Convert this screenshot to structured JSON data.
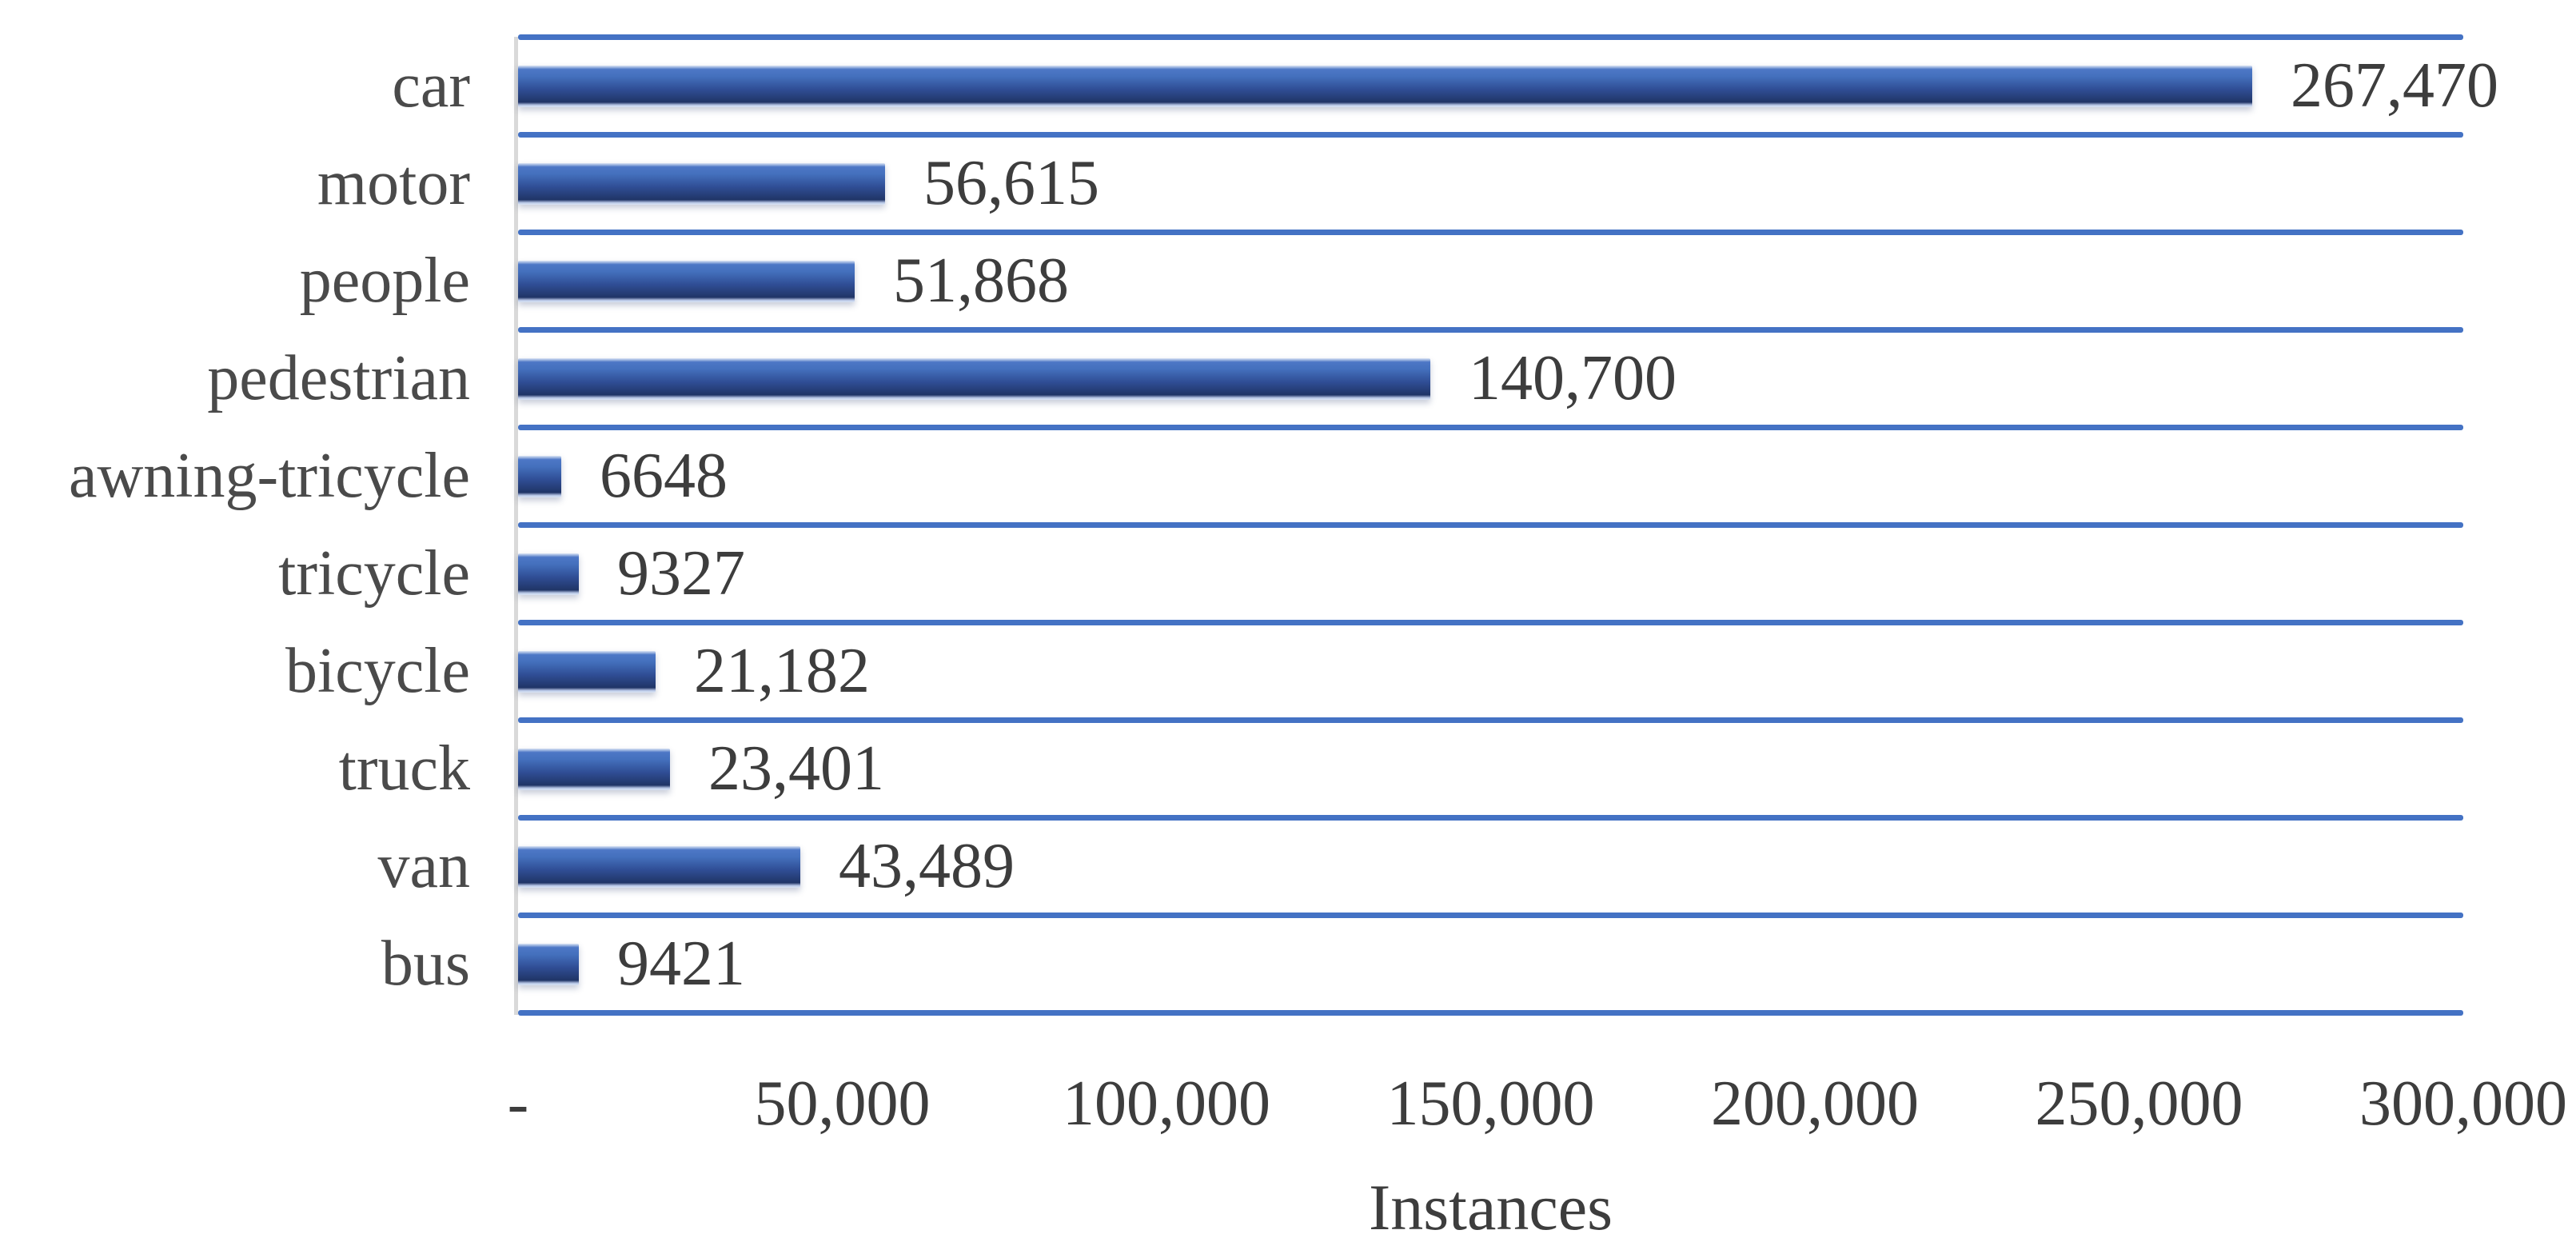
{
  "chart_data": {
    "type": "bar",
    "orientation": "horizontal",
    "title": "",
    "xlabel": "Instances",
    "ylabel": "",
    "xlim": [
      0,
      300000
    ],
    "grid": true,
    "legend": false,
    "categories": [
      "car",
      "motor",
      "people",
      "pedestrian",
      "awning-tricycle",
      "tricycle",
      "bicycle",
      "truck",
      "van",
      "bus"
    ],
    "values": [
      267470,
      56615,
      51868,
      140700,
      6648,
      9327,
      21182,
      23401,
      43489,
      9421
    ],
    "value_labels": [
      "267,470",
      "56,615",
      "51,868",
      "140,700",
      "6648",
      "9327",
      "21,182",
      "23,401",
      "43,489",
      "9421"
    ],
    "x_tick_labels": [
      "-",
      "50,000",
      "100,000",
      "150,000",
      "200,000",
      "250,000",
      "300,000"
    ],
    "colors": {
      "bar_edge_light": "#dce6f5",
      "bar_top": "#4d77c6",
      "bar_upper": "#4470bd",
      "bar_mid": "#2f4d94",
      "bar_bottom": "#203566",
      "bar_bottom_edge": "#b7c6e6",
      "gridline": "#4472c4",
      "axis_line": "#d9d9d9",
      "category_text": "#4a4a4a",
      "value_text": "#3d3d3d",
      "tick_text": "#3d3d3d",
      "axis_title_text": "#3d3d3d"
    }
  }
}
